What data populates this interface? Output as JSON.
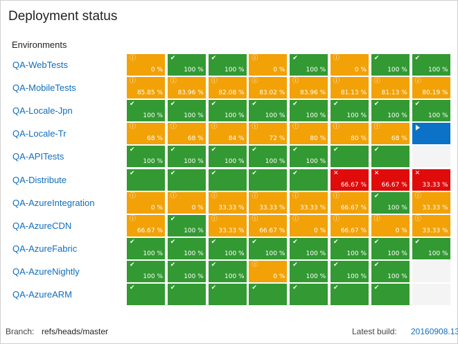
{
  "title": "Deployment status",
  "environments_header": "Environments",
  "colors": {
    "succeeded": "#339933",
    "partial": "#f2a107",
    "failed": "#e00b0b",
    "in_progress": "#0c72c8",
    "empty": "#f4f4f4",
    "link": "#106ebe"
  },
  "icons": {
    "s": "check-icon",
    "p": "warning-icon",
    "f": "cross-icon",
    "i": "play-icon"
  },
  "environments": [
    {
      "name": "QA-WebTests",
      "cells": [
        {
          "s": "p",
          "v": "0 %"
        },
        {
          "s": "s",
          "v": "100 %"
        },
        {
          "s": "s",
          "v": "100 %"
        },
        {
          "s": "p",
          "v": "0 %"
        },
        {
          "s": "s",
          "v": "100 %"
        },
        {
          "s": "p",
          "v": "0 %"
        },
        {
          "s": "s",
          "v": "100 %"
        },
        {
          "s": "s",
          "v": "100 %"
        }
      ]
    },
    {
      "name": "QA-MobileTests",
      "cells": [
        {
          "s": "p",
          "v": "85.85 %"
        },
        {
          "s": "p",
          "v": "83.96 %"
        },
        {
          "s": "p",
          "v": "82.08 %"
        },
        {
          "s": "p",
          "v": "83.02 %"
        },
        {
          "s": "p",
          "v": "83.96 %"
        },
        {
          "s": "p",
          "v": "81.13 %"
        },
        {
          "s": "p",
          "v": "81.13 %"
        },
        {
          "s": "p",
          "v": "80.19 %"
        }
      ]
    },
    {
      "name": "QA-Locale-Jpn",
      "cells": [
        {
          "s": "s",
          "v": "100 %"
        },
        {
          "s": "s",
          "v": "100 %"
        },
        {
          "s": "s",
          "v": "100 %"
        },
        {
          "s": "s",
          "v": "100 %"
        },
        {
          "s": "s",
          "v": "100 %"
        },
        {
          "s": "s",
          "v": "100 %"
        },
        {
          "s": "s",
          "v": "100 %"
        },
        {
          "s": "s",
          "v": "100 %"
        }
      ]
    },
    {
      "name": "QA-Locale-Tr",
      "cells": [
        {
          "s": "p",
          "v": "68 %"
        },
        {
          "s": "p",
          "v": "68 %"
        },
        {
          "s": "p",
          "v": "84 %"
        },
        {
          "s": "p",
          "v": "72 %"
        },
        {
          "s": "p",
          "v": "80 %"
        },
        {
          "s": "p",
          "v": "80 %"
        },
        {
          "s": "p",
          "v": "68 %"
        },
        {
          "s": "i",
          "v": ""
        }
      ]
    },
    {
      "name": "QA-APITests",
      "cells": [
        {
          "s": "s",
          "v": "100 %"
        },
        {
          "s": "s",
          "v": "100 %"
        },
        {
          "s": "s",
          "v": "100 %"
        },
        {
          "s": "s",
          "v": "100 %"
        },
        {
          "s": "s",
          "v": "100 %"
        },
        {
          "s": "s",
          "v": ""
        },
        {
          "s": "s",
          "v": ""
        },
        {
          "s": "e",
          "v": ""
        }
      ]
    },
    {
      "name": "QA-Distribute",
      "cells": [
        {
          "s": "s",
          "v": ""
        },
        {
          "s": "s",
          "v": ""
        },
        {
          "s": "s",
          "v": ""
        },
        {
          "s": "s",
          "v": ""
        },
        {
          "s": "s",
          "v": ""
        },
        {
          "s": "f",
          "v": "66.67 %"
        },
        {
          "s": "f",
          "v": "66.67 %"
        },
        {
          "s": "f",
          "v": "33.33 %"
        }
      ]
    },
    {
      "name": "QA-AzureIntegration",
      "cells": [
        {
          "s": "p",
          "v": "0 %"
        },
        {
          "s": "p",
          "v": "0 %"
        },
        {
          "s": "p",
          "v": "33.33 %"
        },
        {
          "s": "p",
          "v": "33.33 %"
        },
        {
          "s": "p",
          "v": "33.33 %"
        },
        {
          "s": "p",
          "v": "66.67 %"
        },
        {
          "s": "s",
          "v": "100 %"
        },
        {
          "s": "p",
          "v": "33.33 %"
        }
      ]
    },
    {
      "name": "QA-AzureCDN",
      "cells": [
        {
          "s": "p",
          "v": "66.67 %"
        },
        {
          "s": "s",
          "v": "100 %"
        },
        {
          "s": "p",
          "v": "33.33 %"
        },
        {
          "s": "p",
          "v": "66.67 %"
        },
        {
          "s": "p",
          "v": "0 %"
        },
        {
          "s": "p",
          "v": "66.67 %"
        },
        {
          "s": "p",
          "v": "0 %"
        },
        {
          "s": "p",
          "v": "33.33 %"
        }
      ]
    },
    {
      "name": "QA-AzureFabric",
      "cells": [
        {
          "s": "s",
          "v": "100 %"
        },
        {
          "s": "s",
          "v": "100 %"
        },
        {
          "s": "s",
          "v": "100 %"
        },
        {
          "s": "s",
          "v": "100 %"
        },
        {
          "s": "s",
          "v": "100 %"
        },
        {
          "s": "s",
          "v": "100 %"
        },
        {
          "s": "s",
          "v": "100 %"
        },
        {
          "s": "s",
          "v": "100 %"
        }
      ]
    },
    {
      "name": "QA-AzureNightly",
      "cells": [
        {
          "s": "s",
          "v": "100 %"
        },
        {
          "s": "s",
          "v": "100 %"
        },
        {
          "s": "s",
          "v": "100 %"
        },
        {
          "s": "p",
          "v": "0 %"
        },
        {
          "s": "s",
          "v": "100 %"
        },
        {
          "s": "s",
          "v": "100 %"
        },
        {
          "s": "s",
          "v": "100 %"
        },
        {
          "s": "e",
          "v": ""
        }
      ]
    },
    {
      "name": "QA-AzureARM",
      "cells": [
        {
          "s": "s",
          "v": ""
        },
        {
          "s": "s",
          "v": ""
        },
        {
          "s": "s",
          "v": ""
        },
        {
          "s": "s",
          "v": ""
        },
        {
          "s": "s",
          "v": ""
        },
        {
          "s": "s",
          "v": ""
        },
        {
          "s": "s",
          "v": ""
        },
        {
          "s": "e",
          "v": ""
        }
      ]
    }
  ],
  "footer": {
    "branch_label": "Branch:",
    "branch": "refs/heads/master",
    "build_label": "Latest build:",
    "build": "20160908.13"
  }
}
